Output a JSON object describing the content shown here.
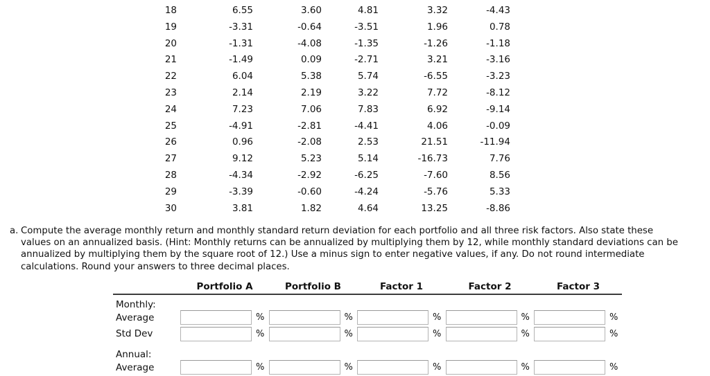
{
  "table": {
    "rows": [
      {
        "n": "18",
        "values": [
          "6.55",
          "3.60",
          "4.81",
          "3.32",
          "-4.43"
        ]
      },
      {
        "n": "19",
        "values": [
          "-3.31",
          "-0.64",
          "-3.51",
          "1.96",
          "0.78"
        ]
      },
      {
        "n": "20",
        "values": [
          "-1.31",
          "-4.08",
          "-1.35",
          "-1.26",
          "-1.18"
        ]
      },
      {
        "n": "21",
        "values": [
          "-1.49",
          "0.09",
          "-2.71",
          "3.21",
          "-3.16"
        ]
      },
      {
        "n": "22",
        "values": [
          "6.04",
          "5.38",
          "5.74",
          "-6.55",
          "-3.23"
        ]
      },
      {
        "n": "23",
        "values": [
          "2.14",
          "2.19",
          "3.22",
          "7.72",
          "-8.12"
        ]
      },
      {
        "n": "24",
        "values": [
          "7.23",
          "7.06",
          "7.83",
          "6.92",
          "-9.14"
        ]
      },
      {
        "n": "25",
        "values": [
          "-4.91",
          "-2.81",
          "-4.41",
          "4.06",
          "-0.09"
        ]
      },
      {
        "n": "26",
        "values": [
          "0.96",
          "-2.08",
          "2.53",
          "21.51",
          "-11.94"
        ]
      },
      {
        "n": "27",
        "values": [
          "9.12",
          "5.23",
          "5.14",
          "-16.73",
          "7.76"
        ]
      },
      {
        "n": "28",
        "values": [
          "-4.34",
          "-2.92",
          "-6.25",
          "-7.60",
          "8.56"
        ]
      },
      {
        "n": "29",
        "values": [
          "-3.39",
          "-0.60",
          "-4.24",
          "-5.76",
          "5.33"
        ]
      },
      {
        "n": "30",
        "values": [
          "3.81",
          "1.82",
          "4.64",
          "13.25",
          "-8.86"
        ]
      }
    ]
  },
  "question": {
    "label": "a.",
    "lines": [
      "Compute the average monthly return and monthly standard return deviation for each portfolio and all three risk factors. Also state these",
      "values on an annualized basis. (Hint: Monthly returns can be annualized by multiplying them by 12, while monthly standard deviations can be",
      "annualized by multiplying them by the square root of 12.) Use a minus sign to enter negative values, if any. Do not round intermediate",
      "calculations. Round your answers to three decimal places."
    ]
  },
  "form": {
    "headers": [
      "Portfolio A",
      "Portfolio B",
      "Factor 1",
      "Factor 2",
      "Factor 3"
    ],
    "percent_suffix": "%",
    "sections": [
      {
        "label": "Monthly:",
        "rows": [
          {
            "label": "Average",
            "values": [
              "",
              "",
              "",
              "",
              ""
            ]
          },
          {
            "label": "Std Dev",
            "values": [
              "",
              "",
              "",
              "",
              ""
            ]
          }
        ]
      },
      {
        "label": "Annual:",
        "rows": [
          {
            "label": "Average",
            "values": [
              "",
              "",
              "",
              "",
              ""
            ]
          }
        ]
      }
    ]
  },
  "colors": {
    "text": "#111111",
    "rule": "#3c3c3c",
    "input_border": "#b3b3b3"
  }
}
